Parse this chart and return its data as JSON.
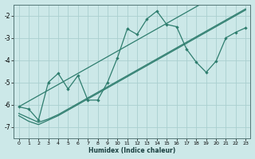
{
  "xlabel": "Humidex (Indice chaleur)",
  "background_color": "#cce8e8",
  "grid_color": "#aacfcf",
  "line_color": "#2e7d6e",
  "x_humidex": [
    0,
    1,
    2,
    3,
    4,
    5,
    6,
    7,
    8,
    9,
    10,
    11,
    12,
    13,
    14,
    15,
    16,
    17,
    18,
    19,
    20,
    21,
    22,
    23
  ],
  "y_main": [
    -6.1,
    -6.2,
    -6.7,
    -5.0,
    -4.6,
    -5.3,
    -4.7,
    -5.8,
    -5.8,
    -5.0,
    -3.9,
    -2.6,
    -2.85,
    -2.15,
    -1.8,
    -2.4,
    -2.5,
    -3.5,
    -4.1,
    -4.55,
    -4.05,
    -3.0,
    -2.75,
    -2.55
  ],
  "y_upper": [
    -6.1,
    -5.85,
    -5.6,
    -5.35,
    -5.1,
    -4.85,
    -4.6,
    -4.35,
    -4.1,
    -3.85,
    -3.6,
    -3.35,
    -3.1,
    -2.85,
    -2.6,
    -2.35,
    -2.1,
    -1.85,
    -1.6,
    -1.35,
    -1.1,
    -0.85,
    -0.6,
    -0.35
  ],
  "y_lower1": [
    -6.4,
    -6.6,
    -6.8,
    -6.65,
    -6.45,
    -6.2,
    -5.95,
    -5.7,
    -5.45,
    -5.2,
    -4.95,
    -4.7,
    -4.45,
    -4.2,
    -3.95,
    -3.7,
    -3.45,
    -3.2,
    -2.95,
    -2.7,
    -2.45,
    -2.2,
    -1.95,
    -1.7
  ],
  "y_lower2": [
    -6.5,
    -6.75,
    -6.9,
    -6.7,
    -6.5,
    -6.25,
    -6.0,
    -5.75,
    -5.5,
    -5.25,
    -5.0,
    -4.75,
    -4.5,
    -4.25,
    -4.0,
    -3.75,
    -3.5,
    -3.25,
    -3.0,
    -2.75,
    -2.5,
    -2.25,
    -2.0,
    -1.75
  ],
  "ylim": [
    -7.5,
    -1.5
  ],
  "xlim": [
    -0.5,
    23.5
  ],
  "xticks": [
    0,
    1,
    2,
    3,
    4,
    5,
    6,
    7,
    8,
    9,
    10,
    11,
    12,
    13,
    14,
    15,
    16,
    17,
    18,
    19,
    20,
    21,
    22,
    23
  ],
  "yticks": [
    -7,
    -6,
    -5,
    -4,
    -3,
    -2
  ]
}
